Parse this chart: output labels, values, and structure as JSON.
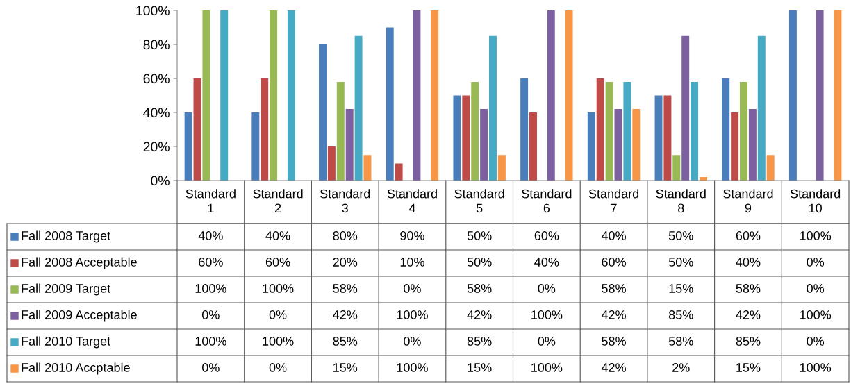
{
  "chart_data": {
    "type": "bar",
    "categories": [
      "Standard 1",
      "Standard 2",
      "Standard 3",
      "Standard 4",
      "Standard 5",
      "Standard 6",
      "Standard 7",
      "Standard 8",
      "Standard 9",
      "Standard 10"
    ],
    "series": [
      {
        "name": "Fall 2008 Target",
        "color": "#4a7ebb",
        "values": [
          40,
          40,
          80,
          90,
          50,
          60,
          40,
          50,
          60,
          100
        ],
        "value_labels": [
          "40%",
          "40%",
          "80%",
          "90%",
          "50%",
          "60%",
          "40%",
          "50%",
          "60%",
          "100%"
        ]
      },
      {
        "name": "Fall 2008 Acceptable",
        "color": "#be4b48",
        "values": [
          60,
          60,
          20,
          10,
          50,
          40,
          60,
          50,
          40,
          0
        ],
        "value_labels": [
          "60%",
          "60%",
          "20%",
          "10%",
          "50%",
          "40%",
          "60%",
          "50%",
          "40%",
          "0%"
        ]
      },
      {
        "name": "Fall 2009 Target",
        "color": "#98b954",
        "values": [
          100,
          100,
          58,
          0,
          58,
          0,
          58,
          15,
          58,
          0
        ],
        "value_labels": [
          "100%",
          "100%",
          "58%",
          "0%",
          "58%",
          "0%",
          "58%",
          "15%",
          "58%",
          "0%"
        ]
      },
      {
        "name": "Fall 2009 Acceptable",
        "color": "#7d60a0",
        "values": [
          0,
          0,
          42,
          100,
          42,
          100,
          42,
          85,
          42,
          100
        ],
        "value_labels": [
          "0%",
          "0%",
          "42%",
          "100%",
          "42%",
          "100%",
          "42%",
          "85%",
          "42%",
          "100%"
        ]
      },
      {
        "name": "Fall 2010 Target",
        "color": "#46aac5",
        "values": [
          100,
          100,
          85,
          0,
          85,
          0,
          58,
          58,
          85,
          0
        ],
        "value_labels": [
          "100%",
          "100%",
          "85%",
          "0%",
          "85%",
          "0%",
          "58%",
          "58%",
          "85%",
          "0%"
        ]
      },
      {
        "name": "Fall 2010 Accptable",
        "color": "#f79646",
        "values": [
          0,
          0,
          15,
          100,
          15,
          100,
          42,
          2,
          15,
          100
        ],
        "value_labels": [
          "0%",
          "0%",
          "15%",
          "100%",
          "15%",
          "100%",
          "42%",
          "2%",
          "15%",
          "100%"
        ]
      }
    ],
    "ylim": [
      0,
      100
    ],
    "yticks": [
      {
        "value": 0,
        "label": "0%"
      },
      {
        "value": 20,
        "label": "20%"
      },
      {
        "value": 40,
        "label": "40%"
      },
      {
        "value": 60,
        "label": "60%"
      },
      {
        "value": 80,
        "label": "80%"
      },
      {
        "value": 100,
        "label": "100%"
      }
    ],
    "legend": "bottom"
  }
}
